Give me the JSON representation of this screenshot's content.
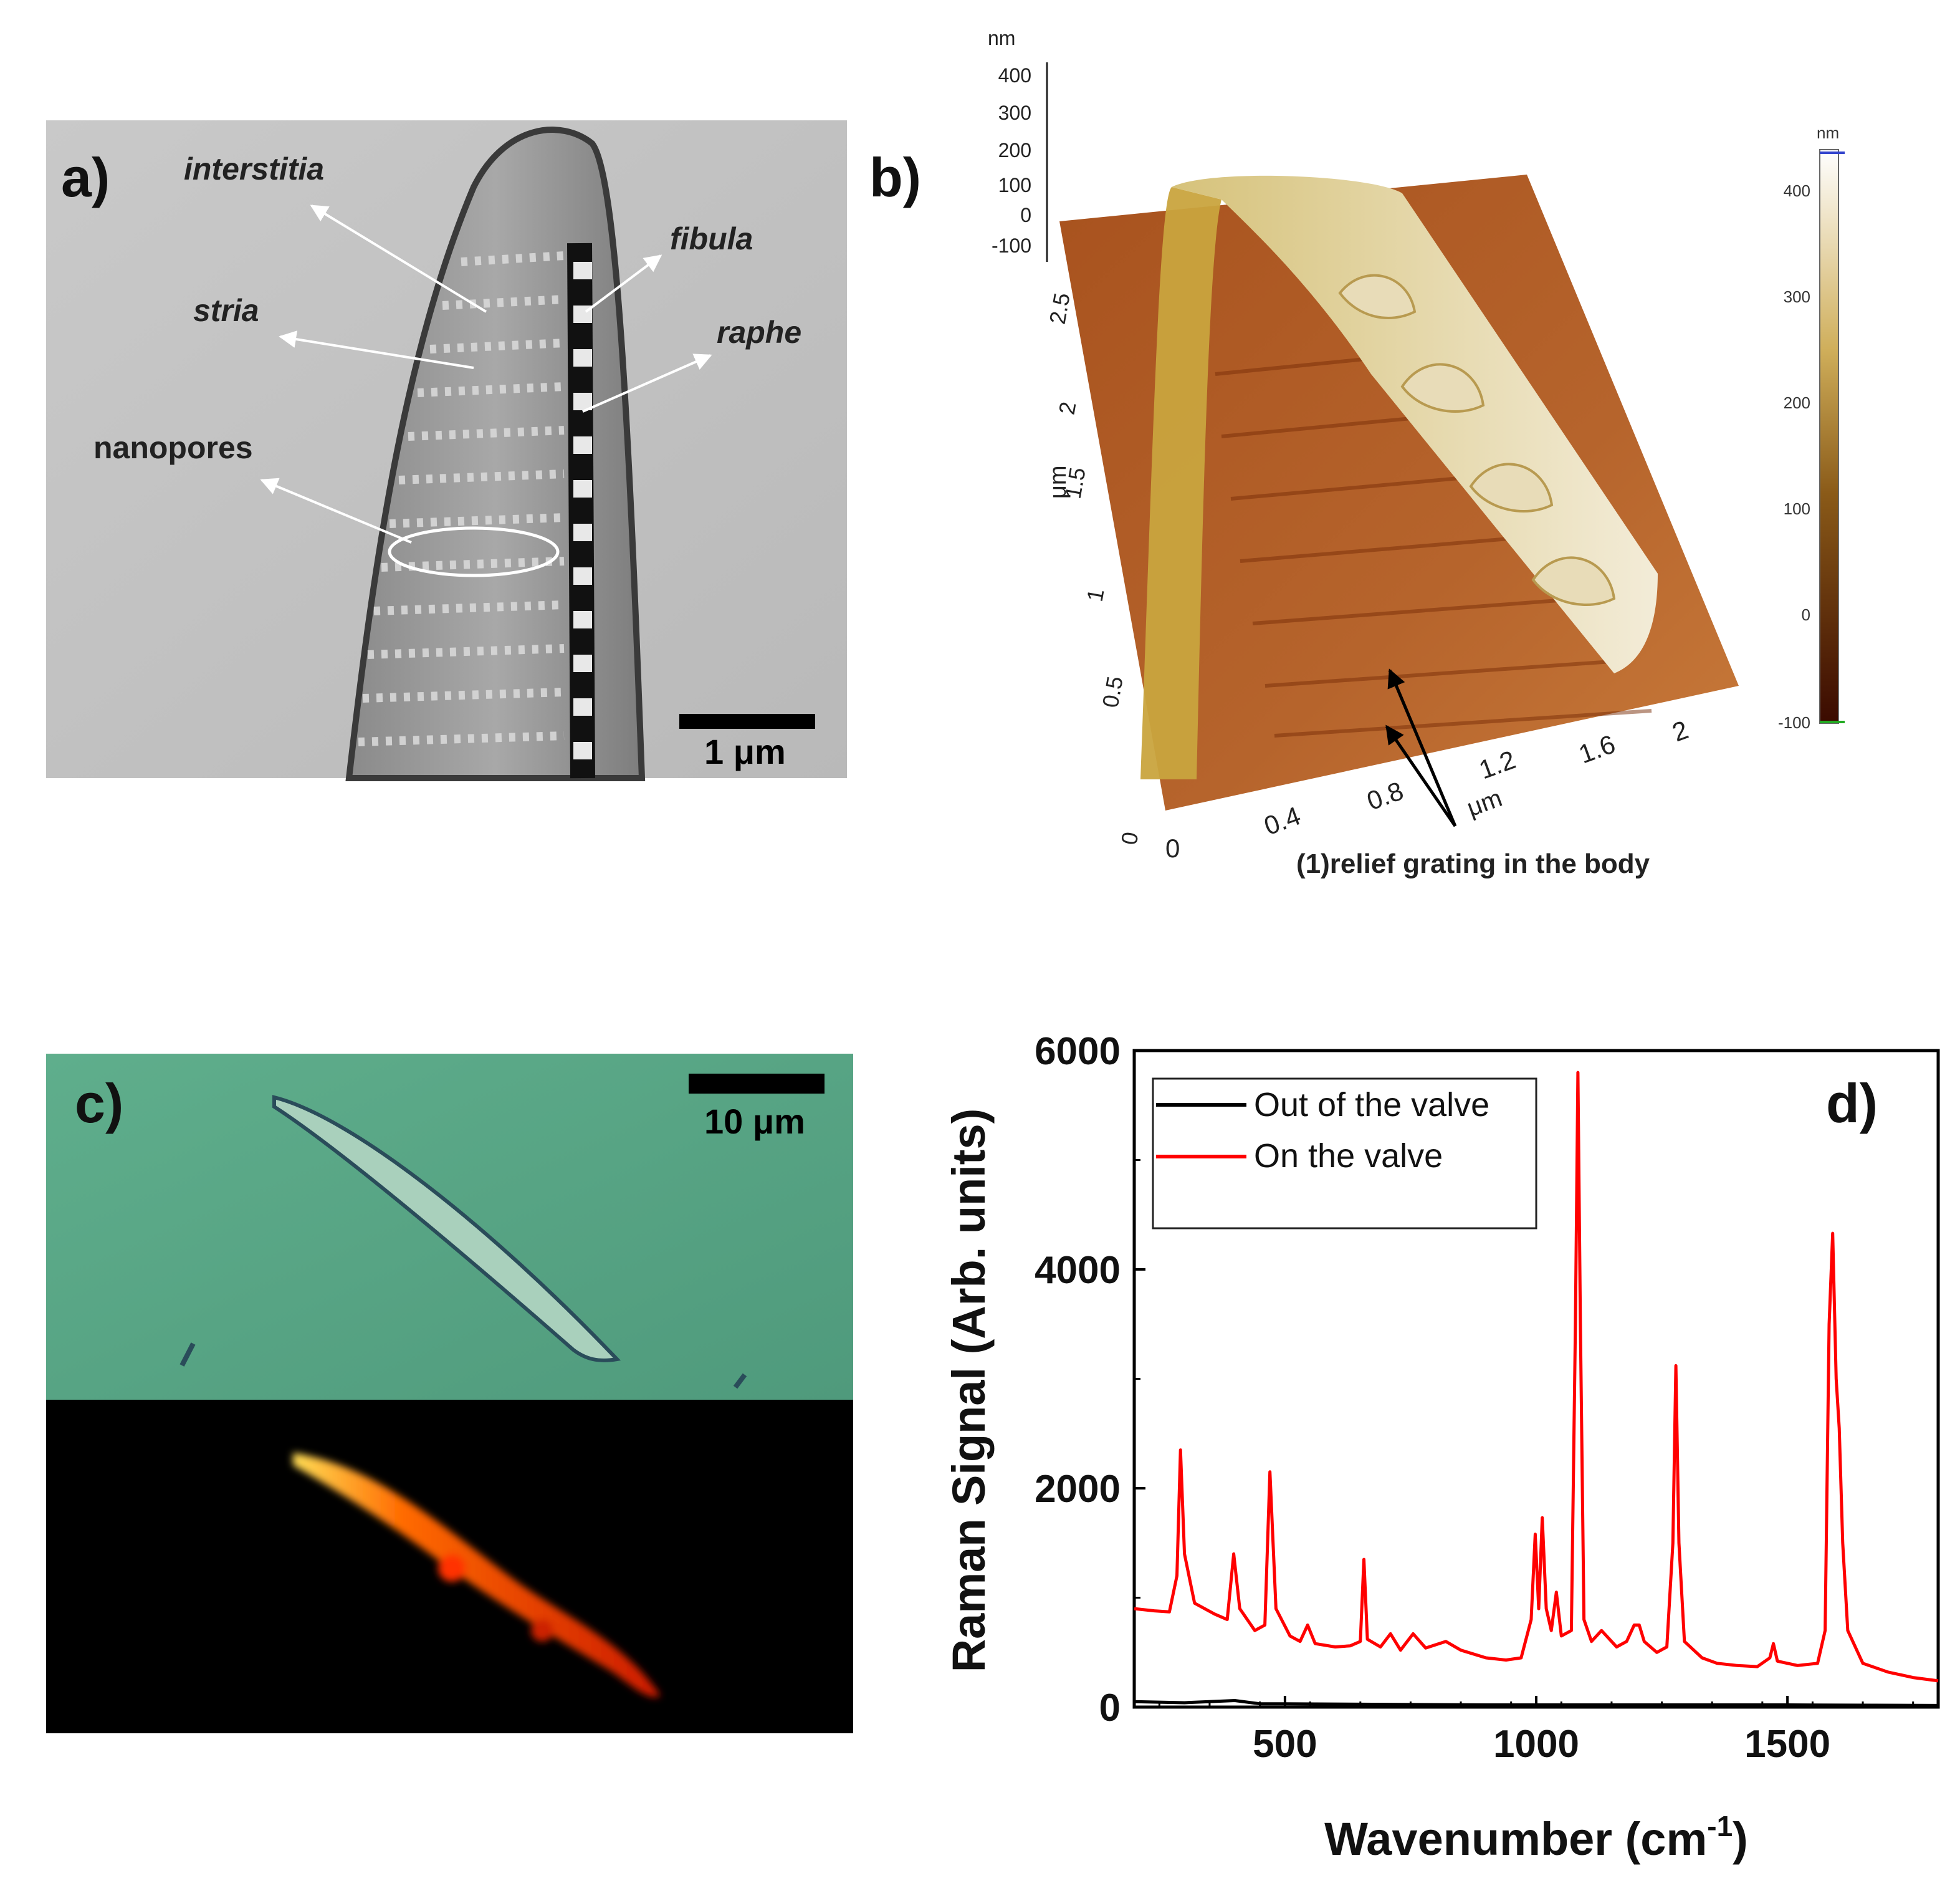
{
  "panel_a": {
    "label": "a)",
    "annotations": {
      "interstitia": "interstitia",
      "stria": "stria",
      "nanopores": "nanopores",
      "fibula": "fibula",
      "raphe": "raphe"
    },
    "scale_bar": "1 μm"
  },
  "panel_b": {
    "label": "b)",
    "z_unit": "nm",
    "z_ticks": [
      "400",
      "300",
      "200",
      "100",
      "0",
      "-100"
    ],
    "y_unit": "μm",
    "y_ticks": [
      "2.5",
      "2",
      "1.5",
      "1",
      "0.5",
      "0"
    ],
    "x_unit": "μm",
    "x_ticks": [
      "0",
      "0.4",
      "0.8",
      "1.2",
      "1.6",
      "2"
    ],
    "colorbar_unit": "nm",
    "colorbar_ticks": [
      "400",
      "300",
      "200",
      "100",
      "0",
      "-100"
    ],
    "annotation": "(1)relief grating in the body"
  },
  "panel_c": {
    "label": "c)",
    "scale_bar": "10 μm"
  },
  "chart_data": {
    "type": "line",
    "label": "d)",
    "title": "",
    "xlabel_main": "Wavenumber (cm",
    "xlabel_sup": "-1",
    "xlabel_end": ")",
    "ylabel": "Raman Signal (Arb. units)",
    "xlim": [
      200,
      1800
    ],
    "ylim": [
      0,
      6000
    ],
    "x_ticks": [
      500,
      1000,
      1500
    ],
    "y_ticks": [
      0,
      2000,
      4000,
      6000
    ],
    "x_tick_labels": [
      "500",
      "1000",
      "1500"
    ],
    "y_tick_labels": [
      "0",
      "2000",
      "4000",
      "6000"
    ],
    "legend_position": "top-left",
    "series": [
      {
        "name": "Out of the valve",
        "color": "#000000",
        "points": [
          [
            200,
            50
          ],
          [
            300,
            40
          ],
          [
            400,
            60
          ],
          [
            450,
            30
          ],
          [
            500,
            30
          ],
          [
            700,
            25
          ],
          [
            900,
            20
          ],
          [
            1200,
            20
          ],
          [
            1500,
            20
          ],
          [
            1800,
            15
          ]
        ]
      },
      {
        "name": "On the valve",
        "color": "#ff0000",
        "points": [
          [
            200,
            900
          ],
          [
            240,
            880
          ],
          [
            270,
            870
          ],
          [
            285,
            1200
          ],
          [
            292,
            2350
          ],
          [
            300,
            1400
          ],
          [
            320,
            950
          ],
          [
            360,
            850
          ],
          [
            385,
            800
          ],
          [
            398,
            1400
          ],
          [
            410,
            900
          ],
          [
            440,
            700
          ],
          [
            460,
            750
          ],
          [
            470,
            2150
          ],
          [
            482,
            900
          ],
          [
            510,
            650
          ],
          [
            530,
            600
          ],
          [
            545,
            750
          ],
          [
            560,
            580
          ],
          [
            600,
            550
          ],
          [
            630,
            560
          ],
          [
            650,
            600
          ],
          [
            657,
            1350
          ],
          [
            664,
            620
          ],
          [
            690,
            550
          ],
          [
            710,
            670
          ],
          [
            730,
            520
          ],
          [
            755,
            670
          ],
          [
            780,
            540
          ],
          [
            820,
            600
          ],
          [
            850,
            520
          ],
          [
            900,
            450
          ],
          [
            940,
            430
          ],
          [
            970,
            450
          ],
          [
            990,
            800
          ],
          [
            998,
            1580
          ],
          [
            1005,
            900
          ],
          [
            1012,
            1730
          ],
          [
            1020,
            900
          ],
          [
            1030,
            700
          ],
          [
            1040,
            1050
          ],
          [
            1050,
            650
          ],
          [
            1070,
            700
          ],
          [
            1078,
            3500
          ],
          [
            1083,
            5800
          ],
          [
            1088,
            3500
          ],
          [
            1095,
            800
          ],
          [
            1110,
            600
          ],
          [
            1130,
            700
          ],
          [
            1160,
            550
          ],
          [
            1180,
            600
          ],
          [
            1195,
            750
          ],
          [
            1205,
            750
          ],
          [
            1215,
            600
          ],
          [
            1240,
            500
          ],
          [
            1260,
            550
          ],
          [
            1272,
            1500
          ],
          [
            1278,
            3120
          ],
          [
            1284,
            1500
          ],
          [
            1295,
            600
          ],
          [
            1330,
            450
          ],
          [
            1360,
            400
          ],
          [
            1400,
            380
          ],
          [
            1440,
            370
          ],
          [
            1465,
            450
          ],
          [
            1472,
            580
          ],
          [
            1480,
            420
          ],
          [
            1520,
            380
          ],
          [
            1560,
            400
          ],
          [
            1575,
            700
          ],
          [
            1583,
            3500
          ],
          [
            1590,
            4330
          ],
          [
            1597,
            3000
          ],
          [
            1603,
            2550
          ],
          [
            1610,
            1500
          ],
          [
            1620,
            700
          ],
          [
            1650,
            400
          ],
          [
            1700,
            320
          ],
          [
            1750,
            270
          ],
          [
            1800,
            240
          ]
        ]
      }
    ]
  }
}
